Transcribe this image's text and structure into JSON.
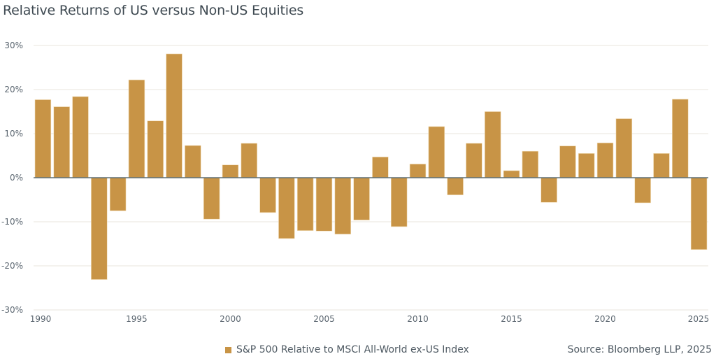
{
  "chart_data": {
    "type": "bar",
    "title": "Relative Returns of US versus Non-US Equities",
    "xlabel": "",
    "ylabel": "",
    "ylim": [
      -30,
      30
    ],
    "yticks": [
      30,
      20,
      10,
      0,
      -10,
      -20,
      -30
    ],
    "ytick_labels": [
      "30%",
      "20%",
      "10%",
      "0%",
      "-10%",
      "-20%",
      "-30%"
    ],
    "xtick_labels": [
      "1990",
      "1995",
      "2000",
      "2005",
      "2010",
      "2015",
      "2020",
      "2025"
    ],
    "grid": true,
    "legend_position": "bottom-center",
    "categories": [
      1990,
      1991,
      1992,
      1993,
      1994,
      1995,
      1996,
      1997,
      1998,
      1999,
      2000,
      2001,
      2002,
      2003,
      2004,
      2005,
      2006,
      2007,
      2008,
      2009,
      2010,
      2011,
      2012,
      2013,
      2014,
      2015,
      2016,
      2017,
      2018,
      2019,
      2020,
      2021,
      2022,
      2023,
      2024,
      2025
    ],
    "series": [
      {
        "name": "S&P 500 Relative to MSCI All-World ex-US Index",
        "color": "#c89446",
        "values": [
          17.7,
          16.1,
          18.4,
          -23.1,
          -7.5,
          22.2,
          12.9,
          28.1,
          7.3,
          -9.4,
          2.9,
          7.8,
          -7.9,
          -13.8,
          -12.0,
          -12.1,
          -12.8,
          -9.6,
          4.7,
          -11.1,
          3.1,
          11.6,
          -3.9,
          7.8,
          15.0,
          1.6,
          6.0,
          -5.6,
          7.2,
          5.5,
          7.9,
          13.4,
          -5.7,
          5.5,
          17.8,
          -16.3
        ]
      }
    ],
    "source": "Source: Bloomberg LLP, 2025"
  },
  "colors": {
    "bar": "#c89446",
    "grid": "#eeeae4",
    "zero_axis": "#5f6f73",
    "text": "#4f5a63"
  }
}
